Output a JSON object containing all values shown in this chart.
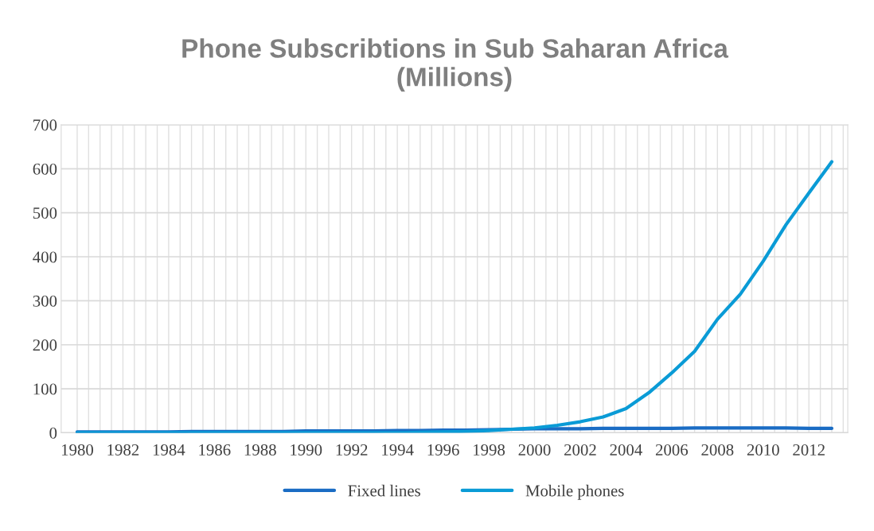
{
  "chart_data": {
    "type": "line",
    "title": "Phone Subscribtions in Sub Saharan Africa\n(Millions)",
    "categories": [
      "1980",
      null,
      "1982",
      null,
      "1984",
      null,
      "1986",
      null,
      "1988",
      null,
      "1990",
      null,
      "1992",
      null,
      "1994",
      null,
      "1996",
      null,
      "1998",
      null,
      "2000",
      null,
      "2002",
      null,
      "2004",
      null,
      "2006",
      null,
      "2008",
      null,
      "2010",
      null,
      "2012",
      null
    ],
    "series": [
      {
        "name": "Fixed lines",
        "color": "#1a6cc4",
        "values": [
          2,
          2,
          2,
          2,
          2,
          3,
          3,
          3,
          3,
          3,
          4,
          4,
          4,
          4,
          5,
          5,
          6,
          6,
          7,
          8,
          9,
          9,
          9,
          10,
          10,
          10,
          10,
          11,
          11,
          11,
          11,
          11,
          10,
          10
        ]
      },
      {
        "name": "Mobile phones",
        "color": "#0a9bd6",
        "values": [
          0,
          0,
          0,
          0,
          0,
          0,
          0,
          0,
          0,
          0,
          0,
          0,
          0,
          0,
          0,
          1,
          2,
          3,
          5,
          8,
          11,
          17,
          25,
          36,
          55,
          91,
          136,
          185,
          258,
          315,
          390,
          473,
          545,
          616
        ]
      }
    ],
    "ylim": [
      0,
      700
    ],
    "yticks": [
      0,
      100,
      200,
      300,
      400,
      500,
      600,
      700
    ],
    "grid": true,
    "legend": "bottom",
    "marker": "none",
    "line_style": "solid"
  }
}
